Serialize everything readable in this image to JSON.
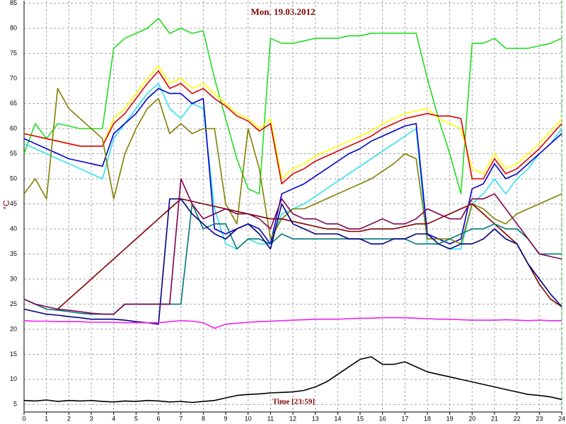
{
  "chart_data": {
    "type": "line",
    "title": "Mon, 19.03.2012",
    "y_label": "°C",
    "annotation": "Time [23:59]",
    "xlim": [
      0,
      24
    ],
    "ylim": [
      3.5,
      85.5
    ],
    "xticks": [
      0,
      1,
      2,
      3,
      4,
      5,
      6,
      7,
      8,
      9,
      10,
      11,
      12,
      13,
      14,
      15,
      16,
      17,
      18,
      19,
      20,
      21,
      22,
      23,
      24
    ],
    "yticks": [
      5,
      10,
      15,
      20,
      25,
      30,
      35,
      40,
      45,
      50,
      55,
      60,
      65,
      70,
      75,
      80,
      85
    ],
    "grid": true,
    "x": [
      0,
      0.5,
      1,
      1.5,
      2,
      2.5,
      3,
      3.5,
      4,
      4.5,
      5,
      5.5,
      6,
      6.5,
      7,
      7.5,
      8,
      8.5,
      9,
      9.5,
      10,
      10.5,
      11,
      11.5,
      12,
      12.5,
      13,
      13.5,
      14,
      14.5,
      15,
      15.5,
      16,
      16.5,
      17,
      17.5,
      18,
      18.5,
      19,
      19.5,
      20,
      20.5,
      21,
      21.5,
      22,
      22.5,
      23,
      23.5,
      24
    ],
    "series": [
      {
        "color": "#22dd22",
        "values": [
          55,
          61,
          58,
          61,
          60.5,
          60,
          60,
          60,
          76,
          78,
          79,
          80,
          82,
          79,
          80,
          79,
          79.5,
          70,
          62,
          54,
          48,
          47,
          78,
          77,
          77,
          77.5,
          78,
          78,
          78,
          78.5,
          78.5,
          79,
          79,
          79,
          79,
          79,
          70,
          62,
          55,
          47,
          77,
          77,
          78,
          76,
          76,
          76,
          76.5,
          77,
          78
        ]
      },
      {
        "color": "#ffff00",
        "values": [
          59,
          58.5,
          58,
          57.5,
          57,
          56.5,
          56.5,
          56.5,
          62,
          64,
          67,
          70,
          72.5,
          69,
          70,
          68,
          69,
          67,
          65,
          63,
          62,
          60,
          62,
          50,
          52,
          53,
          54.5,
          55.5,
          56.5,
          57.5,
          58.5,
          59.5,
          61,
          62,
          63,
          63.5,
          64,
          62,
          61,
          60,
          52,
          51,
          55,
          52,
          53,
          55,
          57,
          59.5,
          62
        ]
      },
      {
        "color": "#dd0000",
        "values": [
          59,
          58.5,
          58,
          57.5,
          57,
          56.5,
          56.5,
          56.5,
          61,
          63,
          66,
          69,
          71.5,
          68,
          69,
          67,
          68,
          66,
          64.5,
          62.5,
          61.5,
          59.5,
          61,
          49,
          51,
          52,
          53.5,
          54.5,
          55.5,
          56.5,
          57.5,
          58.5,
          60,
          61,
          62,
          62.5,
          63,
          62.5,
          62.5,
          62,
          50,
          50,
          54,
          51,
          52,
          54,
          56,
          58.5,
          61
        ]
      },
      {
        "color": "#33e0f0",
        "values": [
          57,
          56,
          55,
          54,
          53,
          52,
          51,
          50,
          58,
          61,
          64,
          67,
          69,
          64,
          62,
          65,
          64,
          44,
          37,
          36,
          38,
          37,
          37,
          43,
          44,
          45,
          46.5,
          48,
          49.5,
          51,
          52.5,
          54,
          55.5,
          57,
          58.5,
          60,
          37,
          37,
          36,
          36,
          45,
          47,
          50,
          47,
          50,
          52,
          55,
          57,
          60
        ]
      },
      {
        "color": "#0000cc",
        "values": [
          58,
          57,
          56,
          55,
          54,
          53.5,
          53,
          52.5,
          59,
          61,
          63,
          66,
          68,
          67,
          67,
          65,
          66,
          40,
          39,
          40,
          41,
          40,
          37,
          47,
          48,
          49,
          50.5,
          52,
          53.5,
          55,
          56,
          57.5,
          58.5,
          59.5,
          60.5,
          61,
          39,
          38,
          37,
          38,
          48,
          49,
          53,
          50,
          51,
          53,
          55,
          57,
          59
        ]
      },
      {
        "color": "#808000",
        "values": [
          47,
          50,
          46,
          68,
          64,
          62,
          60,
          58,
          46,
          55,
          60,
          64,
          66,
          59,
          61,
          59,
          60,
          60,
          45,
          41,
          60,
          52,
          38,
          42,
          44,
          44,
          45,
          46,
          47,
          48,
          49,
          50,
          51.5,
          53,
          55,
          54,
          38,
          38,
          38,
          37,
          45,
          44,
          42,
          41,
          43,
          44,
          45,
          46,
          47
        ]
      },
      {
        "color": "#800000",
        "values": [
          null,
          null,
          null,
          24,
          26,
          28,
          30,
          32,
          34,
          36,
          38,
          40,
          42,
          44,
          46,
          45.5,
          45,
          44.5,
          44,
          43.5,
          43,
          42.5,
          42,
          42,
          41.5,
          41,
          40.5,
          40,
          40,
          39.5,
          39.5,
          40,
          40,
          40,
          40.5,
          41,
          41,
          42,
          43,
          44,
          45,
          43,
          41,
          39,
          37,
          33,
          29,
          26,
          24.5
        ]
      },
      {
        "color": "#007878",
        "values": [
          26,
          25,
          24,
          23.8,
          23.5,
          23.2,
          23,
          23,
          23,
          25,
          25,
          25,
          25,
          25,
          25,
          45,
          40,
          41,
          41,
          36,
          38,
          38,
          37,
          39,
          38,
          38,
          38,
          38,
          38,
          38,
          38,
          38,
          38,
          38,
          38,
          37,
          37,
          37,
          38,
          39,
          40,
          40,
          41,
          40,
          40,
          38,
          35,
          35,
          35
        ]
      },
      {
        "color": "#000080",
        "values": [
          24,
          23.5,
          23,
          22.8,
          22.5,
          22.3,
          22,
          22,
          22,
          21.8,
          21.5,
          21.3,
          21,
          46,
          46,
          43,
          41,
          39,
          38,
          40,
          41,
          39,
          36,
          45,
          41,
          40,
          39,
          39,
          39,
          38,
          38,
          37,
          37,
          38,
          38,
          39,
          39,
          37,
          36,
          37,
          37,
          38,
          40,
          38,
          37,
          33,
          30,
          27,
          24.5
        ]
      },
      {
        "color": "#800050",
        "values": [
          26,
          25,
          24.5,
          24,
          23.8,
          23.5,
          23.2,
          23,
          23,
          25,
          25,
          25,
          25,
          25,
          50,
          45,
          42,
          43,
          44,
          43,
          43,
          42,
          40,
          46,
          43,
          42,
          42,
          41,
          41,
          40,
          40,
          41,
          42,
          41,
          41,
          42,
          44,
          43,
          42,
          42,
          46,
          46,
          47,
          44,
          41,
          38,
          35,
          34.5,
          34
        ]
      },
      {
        "color": "#ee22ee",
        "values": [
          21.7,
          21.6,
          21.6,
          21.5,
          21.5,
          21.5,
          21.4,
          21.4,
          21.4,
          21.3,
          21.3,
          21.3,
          21.3,
          21.5,
          21.7,
          21.6,
          21.3,
          20.2,
          21,
          21.2,
          21.4,
          21.5,
          21.6,
          21.7,
          21.8,
          21.9,
          22,
          22,
          22,
          22.1,
          22.2,
          22.2,
          22.3,
          22.3,
          22.3,
          22.2,
          22.1,
          22,
          22,
          21.9,
          21.8,
          21.8,
          21.8,
          21.9,
          21.8,
          21.7,
          21.8,
          21.7,
          21.7
        ]
      },
      {
        "color": "#000000",
        "values": [
          5.8,
          5.7,
          5.9,
          5.6,
          5.8,
          5.7,
          5.8,
          5.6,
          5.5,
          5.7,
          5.6,
          5.8,
          5.7,
          5.5,
          5.6,
          5.4,
          5.6,
          5.8,
          6.3,
          6.8,
          7,
          7.1,
          7.3,
          7.4,
          7.5,
          7.8,
          8.5,
          9.5,
          11,
          12.5,
          14,
          14.5,
          13,
          13,
          13.5,
          12.5,
          11.5,
          11,
          10.5,
          10,
          9.5,
          9,
          8.5,
          8,
          7.5,
          7,
          6.8,
          6.5,
          6
        ]
      }
    ]
  }
}
